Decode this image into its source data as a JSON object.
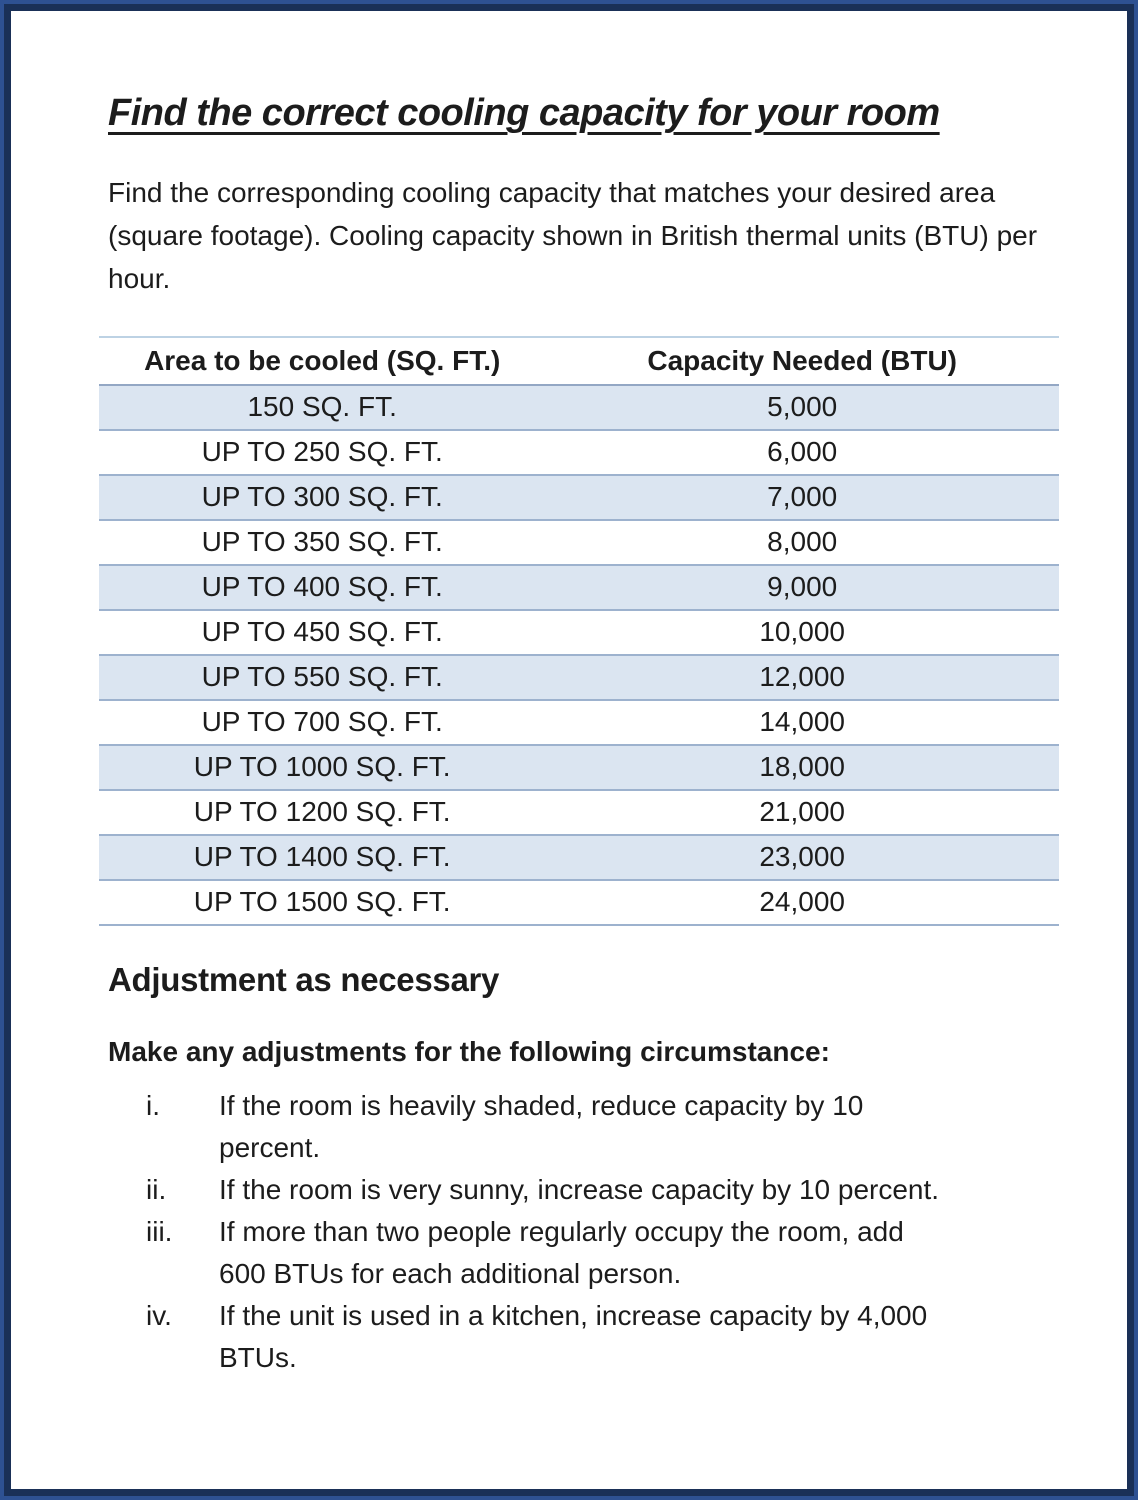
{
  "document": {
    "title": "Find the correct cooling capacity for your room",
    "intro": "Find the corresponding cooling capacity that matches your desired area (square footage). Cooling capacity shown in British thermal units (BTU) per hour.",
    "table": {
      "headers": [
        "Area to be cooled (SQ. FT.)",
        "Capacity Needed (BTU)"
      ],
      "rows": [
        {
          "area": "150 SQ. FT.",
          "capacity": "5,000",
          "shaded": true
        },
        {
          "area": "UP TO 250 SQ. FT.",
          "capacity": "6,000",
          "shaded": false
        },
        {
          "area": "UP TO 300 SQ. FT.",
          "capacity": "7,000",
          "shaded": true
        },
        {
          "area": "UP TO 350 SQ. FT.",
          "capacity": "8,000",
          "shaded": false
        },
        {
          "area": "UP TO 400 SQ. FT.",
          "capacity": "9,000",
          "shaded": true
        },
        {
          "area": "UP TO 450 SQ. FT.",
          "capacity": "10,000",
          "shaded": false
        },
        {
          "area": "UP TO 550 SQ. FT.",
          "capacity": "12,000",
          "shaded": true
        },
        {
          "area": "UP TO 700 SQ. FT.",
          "capacity": "14,000",
          "shaded": false
        },
        {
          "area": "UP TO 1000 SQ. FT.",
          "capacity": "18,000",
          "shaded": true
        },
        {
          "area": "UP TO 1200 SQ. FT.",
          "capacity": "21,000",
          "shaded": false
        },
        {
          "area": "UP TO 1400 SQ. FT.",
          "capacity": "23,000",
          "shaded": true
        },
        {
          "area": "UP TO 1500 SQ. FT.",
          "capacity": "24,000",
          "shaded": false
        }
      ]
    },
    "adjustments": {
      "heading": "Adjustment as necessary",
      "lead": "Make any adjustments for the following circumstance:",
      "items": [
        {
          "marker": "i.",
          "text": "If the room is heavily shaded, reduce capacity by 10 percent."
        },
        {
          "marker": "ii.",
          "text": "If the room is very sunny, increase capacity by 10 percent."
        },
        {
          "marker": "iii.",
          "text": "If more than two people regularly occupy the room, add 600 BTUs for each additional person."
        },
        {
          "marker": "iv.",
          "text": "If the unit is used in a kitchen, increase capacity by 4,000 BTUs."
        }
      ]
    }
  },
  "colors": {
    "frame_outer": "#2e5192",
    "frame_inner": "#1a3057",
    "text": "#1c1c1c",
    "row_shade": "#dbe5f1",
    "row_border": "#9db2ce",
    "header_border": "#93a7c4",
    "table_top_border": "#bdd2e4"
  }
}
